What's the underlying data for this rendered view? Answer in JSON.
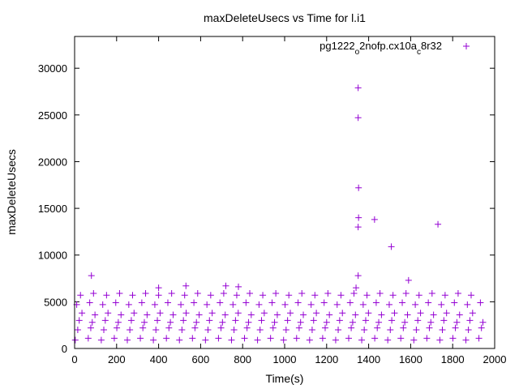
{
  "chart_data": {
    "type": "scatter",
    "title": "maxDeleteUsecs vs Time for l.i1",
    "xlabel": "Time(s)",
    "ylabel": "maxDeleteUsecs",
    "xlim": [
      0,
      2000
    ],
    "ylim": [
      0,
      33400
    ],
    "xticks": [
      0,
      200,
      400,
      600,
      800,
      1000,
      1200,
      1400,
      1600,
      1800,
      2000
    ],
    "yticks": [
      0,
      5000,
      10000,
      15000,
      20000,
      25000,
      30000
    ],
    "grid": false,
    "legend_position": "top-right",
    "series": [
      {
        "name": "pg1222_o2nofp.cx10a_c8r32",
        "color": "#9400d3",
        "marker": "plus",
        "points": [
          [
            3,
            900
          ],
          [
            15,
            2000
          ],
          [
            22,
            3000
          ],
          [
            35,
            3800
          ],
          [
            10,
            4700
          ],
          [
            28,
            5700
          ],
          [
            65,
            1100
          ],
          [
            77,
            2200
          ],
          [
            84,
            2800
          ],
          [
            97,
            3600
          ],
          [
            72,
            4900
          ],
          [
            90,
            5900
          ],
          [
            127,
            900
          ],
          [
            139,
            2000
          ],
          [
            146,
            3000
          ],
          [
            159,
            3800
          ],
          [
            134,
            4700
          ],
          [
            152,
            5700
          ],
          [
            189,
            1100
          ],
          [
            201,
            2200
          ],
          [
            208,
            2800
          ],
          [
            221,
            3600
          ],
          [
            196,
            4900
          ],
          [
            214,
            5900
          ],
          [
            251,
            900
          ],
          [
            263,
            2000
          ],
          [
            270,
            3000
          ],
          [
            283,
            3800
          ],
          [
            258,
            4700
          ],
          [
            276,
            5700
          ],
          [
            313,
            1100
          ],
          [
            325,
            2200
          ],
          [
            332,
            2800
          ],
          [
            345,
            3600
          ],
          [
            320,
            4900
          ],
          [
            338,
            5900
          ],
          [
            375,
            900
          ],
          [
            387,
            2000
          ],
          [
            394,
            3000
          ],
          [
            407,
            3800
          ],
          [
            382,
            4700
          ],
          [
            400,
            5700
          ],
          [
            437,
            1100
          ],
          [
            449,
            2200
          ],
          [
            456,
            2800
          ],
          [
            469,
            3600
          ],
          [
            444,
            4900
          ],
          [
            462,
            5900
          ],
          [
            499,
            900
          ],
          [
            511,
            2000
          ],
          [
            518,
            3000
          ],
          [
            531,
            3800
          ],
          [
            506,
            4700
          ],
          [
            524,
            5700
          ],
          [
            561,
            1100
          ],
          [
            573,
            2200
          ],
          [
            580,
            2800
          ],
          [
            593,
            3600
          ],
          [
            568,
            4900
          ],
          [
            586,
            5900
          ],
          [
            623,
            900
          ],
          [
            635,
            2000
          ],
          [
            642,
            3000
          ],
          [
            655,
            3800
          ],
          [
            630,
            4700
          ],
          [
            648,
            5700
          ],
          [
            685,
            1100
          ],
          [
            697,
            2200
          ],
          [
            704,
            2800
          ],
          [
            717,
            3600
          ],
          [
            692,
            4900
          ],
          [
            710,
            5900
          ],
          [
            747,
            900
          ],
          [
            759,
            2000
          ],
          [
            766,
            3000
          ],
          [
            779,
            3800
          ],
          [
            754,
            4700
          ],
          [
            772,
            5700
          ],
          [
            809,
            1100
          ],
          [
            821,
            2200
          ],
          [
            828,
            2800
          ],
          [
            841,
            3600
          ],
          [
            816,
            4900
          ],
          [
            834,
            5900
          ],
          [
            871,
            900
          ],
          [
            883,
            2000
          ],
          [
            890,
            3000
          ],
          [
            903,
            3800
          ],
          [
            878,
            4700
          ],
          [
            896,
            5700
          ],
          [
            933,
            1100
          ],
          [
            945,
            2200
          ],
          [
            952,
            2800
          ],
          [
            965,
            3600
          ],
          [
            940,
            4900
          ],
          [
            958,
            5900
          ],
          [
            995,
            900
          ],
          [
            1007,
            2000
          ],
          [
            1014,
            3000
          ],
          [
            1027,
            3800
          ],
          [
            1002,
            4700
          ],
          [
            1020,
            5700
          ],
          [
            1057,
            1100
          ],
          [
            1069,
            2200
          ],
          [
            1076,
            2800
          ],
          [
            1089,
            3600
          ],
          [
            1064,
            4900
          ],
          [
            1082,
            5900
          ],
          [
            1119,
            900
          ],
          [
            1131,
            2000
          ],
          [
            1138,
            3000
          ],
          [
            1151,
            3800
          ],
          [
            1126,
            4700
          ],
          [
            1144,
            5700
          ],
          [
            1181,
            1100
          ],
          [
            1193,
            2200
          ],
          [
            1200,
            2800
          ],
          [
            1213,
            3600
          ],
          [
            1188,
            4900
          ],
          [
            1206,
            5900
          ],
          [
            1243,
            900
          ],
          [
            1255,
            2000
          ],
          [
            1262,
            3000
          ],
          [
            1275,
            3800
          ],
          [
            1250,
            4700
          ],
          [
            1268,
            5700
          ],
          [
            1305,
            1100
          ],
          [
            1317,
            2200
          ],
          [
            1324,
            2800
          ],
          [
            1337,
            3600
          ],
          [
            1312,
            4900
          ],
          [
            1330,
            5900
          ],
          [
            1367,
            900
          ],
          [
            1379,
            2000
          ],
          [
            1386,
            3000
          ],
          [
            1399,
            3800
          ],
          [
            1374,
            4700
          ],
          [
            1392,
            5700
          ],
          [
            1429,
            1100
          ],
          [
            1441,
            2200
          ],
          [
            1448,
            2800
          ],
          [
            1461,
            3600
          ],
          [
            1436,
            4900
          ],
          [
            1454,
            5900
          ],
          [
            1491,
            900
          ],
          [
            1503,
            2000
          ],
          [
            1510,
            3000
          ],
          [
            1523,
            3800
          ],
          [
            1498,
            4700
          ],
          [
            1516,
            5700
          ],
          [
            1553,
            1100
          ],
          [
            1565,
            2200
          ],
          [
            1572,
            2800
          ],
          [
            1585,
            3600
          ],
          [
            1560,
            4900
          ],
          [
            1578,
            5900
          ],
          [
            1615,
            900
          ],
          [
            1627,
            2000
          ],
          [
            1634,
            3000
          ],
          [
            1647,
            3800
          ],
          [
            1622,
            4700
          ],
          [
            1640,
            5700
          ],
          [
            1677,
            1100
          ],
          [
            1689,
            2200
          ],
          [
            1696,
            2800
          ],
          [
            1709,
            3600
          ],
          [
            1684,
            4900
          ],
          [
            1702,
            5900
          ],
          [
            1739,
            900
          ],
          [
            1751,
            2000
          ],
          [
            1758,
            3000
          ],
          [
            1771,
            3800
          ],
          [
            1746,
            4700
          ],
          [
            1764,
            5700
          ],
          [
            1801,
            1100
          ],
          [
            1813,
            2200
          ],
          [
            1820,
            2800
          ],
          [
            1833,
            3600
          ],
          [
            1808,
            4900
          ],
          [
            1826,
            5900
          ],
          [
            1863,
            900
          ],
          [
            1875,
            2000
          ],
          [
            1882,
            3000
          ],
          [
            1895,
            3800
          ],
          [
            1870,
            4700
          ],
          [
            1888,
            5700
          ],
          [
            1925,
            1100
          ],
          [
            1937,
            2200
          ],
          [
            1944,
            2800
          ],
          [
            1932,
            4900
          ],
          [
            80,
            7800
          ],
          [
            1350,
            27900
          ],
          [
            1350,
            24700
          ],
          [
            1352,
            17200
          ],
          [
            1352,
            14000
          ],
          [
            1350,
            13000
          ],
          [
            1428,
            13800
          ],
          [
            1508,
            10900
          ],
          [
            1730,
            13300
          ],
          [
            1350,
            7800
          ],
          [
            1590,
            7300
          ],
          [
            400,
            6500
          ],
          [
            530,
            6700
          ],
          [
            720,
            6700
          ],
          [
            780,
            6600
          ],
          [
            1340,
            6500
          ]
        ]
      }
    ]
  }
}
